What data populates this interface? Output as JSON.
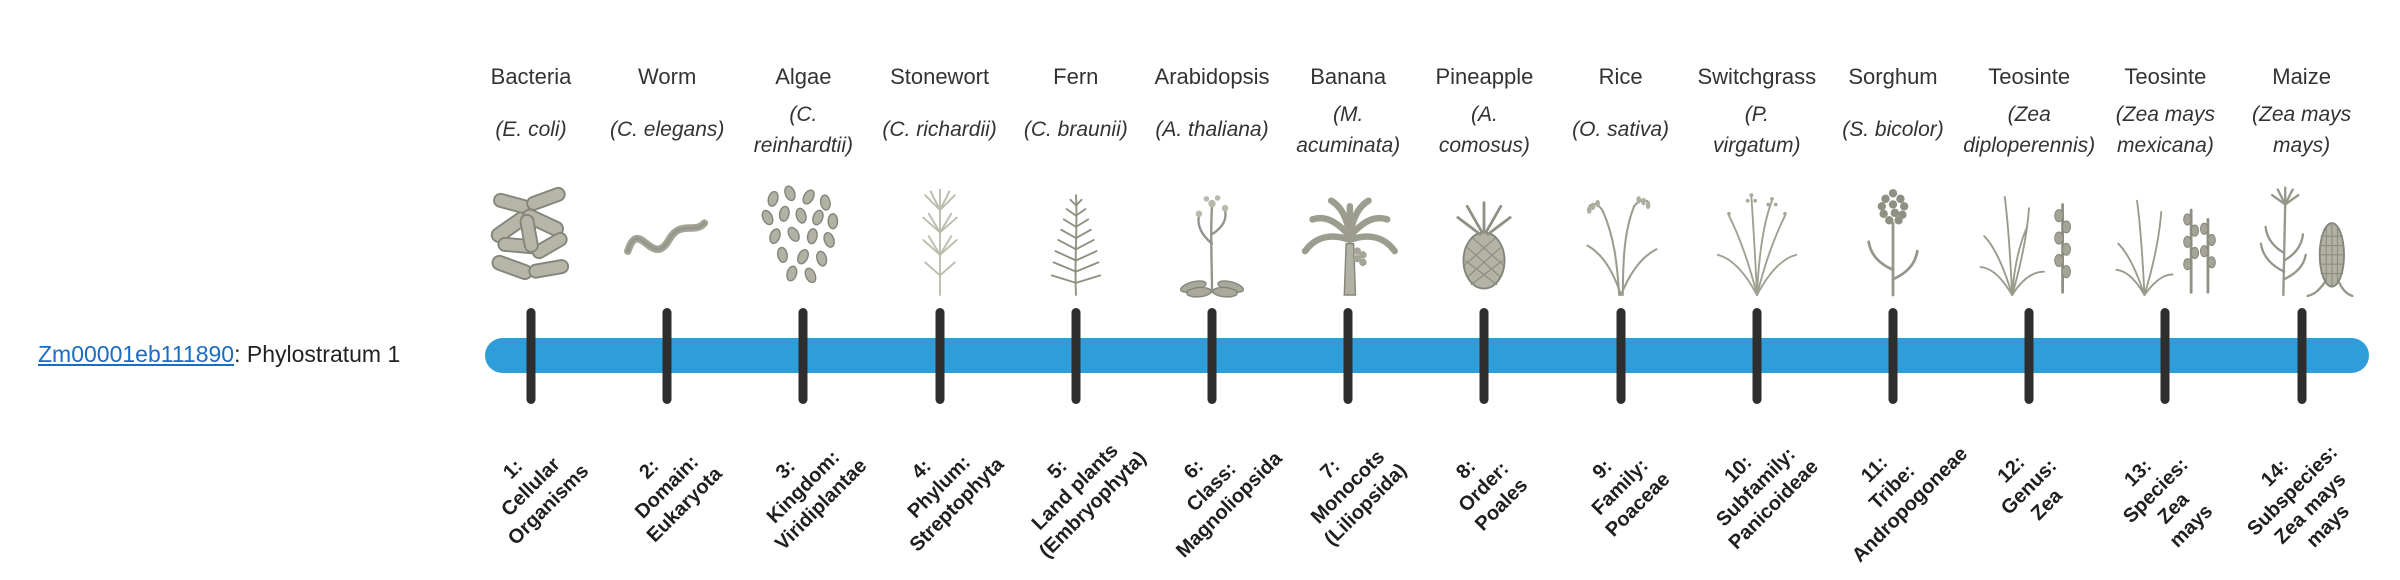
{
  "gene": {
    "id": "Zm00001eb111890",
    "suffix": ": Phylostratum 1"
  },
  "colors": {
    "bar": "#2f9dda",
    "tick": "#2e2e2e",
    "link": "#1a6cc4",
    "text": "#333333"
  },
  "phylostrata": [
    {
      "name": "Bacteria",
      "species": "(E. coli)",
      "icon": "bacteria-icon",
      "stratum": "1:\nCellular\nOrganisms"
    },
    {
      "name": "Worm",
      "species": "(C. elegans)",
      "icon": "worm-icon",
      "stratum": "2:\nDomain:\nEukaryota"
    },
    {
      "name": "Algae",
      "species": "(C.\nreinhardtii)",
      "icon": "algae-icon",
      "stratum": "3:\nKingdom:\nViridiplantae"
    },
    {
      "name": "Stonewort",
      "species": "(C. richardii)",
      "icon": "stonewort-icon",
      "stratum": "4:\nPhylum:\nStreptophyta"
    },
    {
      "name": "Fern",
      "species": "(C. braunii)",
      "icon": "fern-icon",
      "stratum": "5:\nLand plants\n(Embryophyta)"
    },
    {
      "name": "Arabidopsis",
      "species": "(A. thaliana)",
      "icon": "arabidopsis-icon",
      "stratum": "6:\nClass:\nMagnoliopsida"
    },
    {
      "name": "Banana",
      "species": "(M.\nacuminata)",
      "icon": "banana-icon",
      "stratum": "7:\nMonocots\n(Liliopsida)"
    },
    {
      "name": "Pineapple",
      "species": "(A.\ncomosus)",
      "icon": "pineapple-icon",
      "stratum": "8:\nOrder:\nPoales"
    },
    {
      "name": "Rice",
      "species": "(O. sativa)",
      "icon": "rice-icon",
      "stratum": "9:\nFamily:\nPoaceae"
    },
    {
      "name": "Switchgrass",
      "species": "(P.\nvirgatum)",
      "icon": "switchgrass-icon",
      "stratum": "10:\nSubfamily:\nPanicoideae"
    },
    {
      "name": "Sorghum",
      "species": "(S. bicolor)",
      "icon": "sorghum-icon",
      "stratum": "11:\nTribe:\nAndropogoneae"
    },
    {
      "name": "Teosinte",
      "species": "(Zea\ndiploperennis)",
      "icon": "teosinte-icon",
      "stratum": "12:\nGenus:\nZea"
    },
    {
      "name": "Teosinte",
      "species": "(Zea mays\nmexicana)",
      "icon": "teosinte2-icon",
      "stratum": "13:\nSpecies:\nZea\nmays"
    },
    {
      "name": "Maize",
      "species": "(Zea mays\nmays)",
      "icon": "maize-icon",
      "stratum": "14:\nSubspecies:\nZea mays\nmays"
    }
  ]
}
